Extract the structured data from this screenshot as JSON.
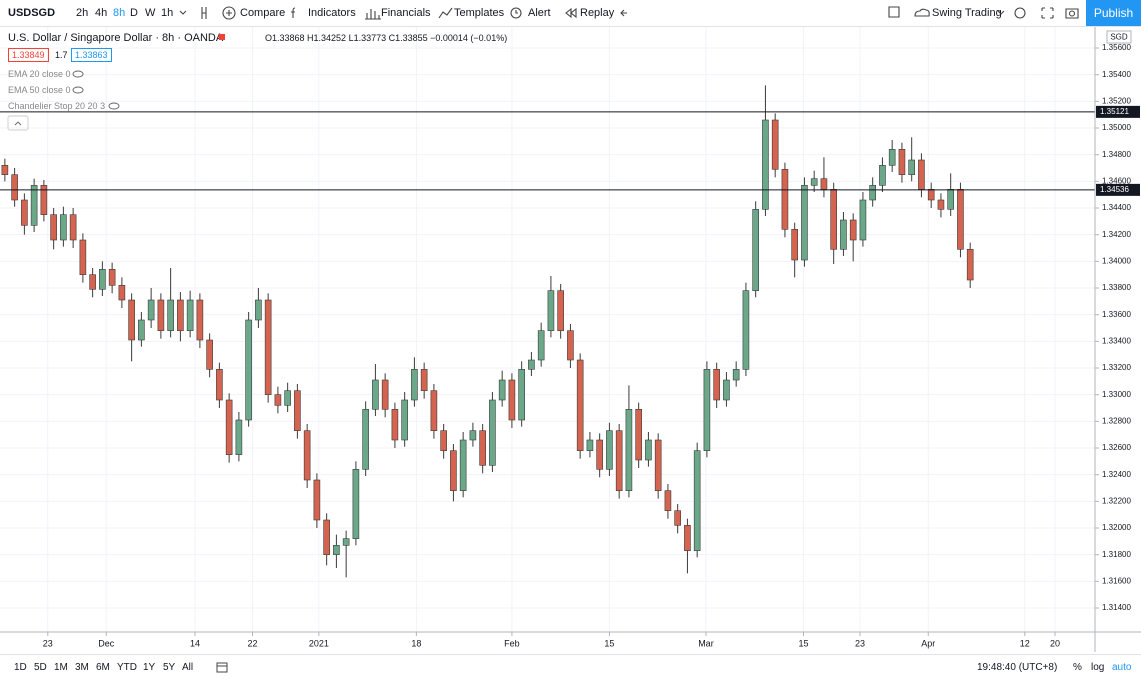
{
  "toolbar": {
    "symbol": "USDSGD",
    "intervals": [
      "2h",
      "4h",
      "8h",
      "D",
      "W",
      "1h"
    ],
    "buttons": [
      "Compare",
      "Indicators",
      "Financials",
      "Templates",
      "Alert",
      "Replay"
    ],
    "layout": "Swing Trading",
    "publish": "Publish"
  },
  "legend": {
    "title": "U.S. Dollar / Singapore Dollar · 8h · OANDA",
    "ohlc": "O1.33868 H1.34252 L1.33773 C1.33855 −0.00014 (−0.01%)",
    "bid": "1.33849",
    "spread": "1.7",
    "ask": "1.33863",
    "indicators": [
      "EMA 20 close 0",
      "EMA 50 close 0",
      "Chandelier Stop 20 20 3"
    ]
  },
  "chart_data": {
    "type": "candlestick",
    "currency": "SGD",
    "up_color": "#6aa889",
    "down_color": "#d4634f",
    "wick_color": "#3a3a3a",
    "grid": true,
    "open": [
      1.3472,
      1.3465,
      1.3446,
      1.3427,
      1.3457,
      1.3435,
      1.3416,
      1.3435,
      1.3416,
      1.339,
      1.3379,
      1.3394,
      1.3382,
      1.3371,
      1.3341,
      1.3356,
      1.3371,
      1.3348,
      1.3371,
      1.3348,
      1.3371,
      1.3341,
      1.3319,
      1.3296,
      1.3255,
      1.3281,
      1.3356,
      1.3371,
      1.33,
      1.3292,
      1.3303,
      1.3273,
      1.3236,
      1.3206,
      1.318,
      1.3187,
      1.3192,
      1.3244,
      1.3289,
      1.3311,
      1.3289,
      1.3266,
      1.3296,
      1.3319,
      1.3303,
      1.3273,
      1.3258,
      1.3228,
      1.3266,
      1.3273,
      1.3247,
      1.3296,
      1.3311,
      1.3281,
      1.3319,
      1.3326,
      1.3348,
      1.3378,
      1.3348,
      1.3326,
      1.3258,
      1.3266,
      1.3244,
      1.3273,
      1.3228,
      1.3289,
      1.3251,
      1.3266,
      1.3228,
      1.3213,
      1.3202,
      1.3183,
      1.3258,
      1.3319,
      1.3296,
      1.3311,
      1.3319,
      1.3378,
      1.3439,
      1.3506,
      1.3469,
      1.3424,
      1.3401,
      1.3457,
      1.3462,
      1.3454,
      1.3409,
      1.3431,
      1.3416,
      1.3446,
      1.3457,
      1.3472,
      1.3484,
      1.3465,
      1.3476,
      1.3454,
      1.3446,
      1.3439,
      1.3454,
      1.3409
    ],
    "high": [
      1.3477,
      1.347,
      1.3451,
      1.3462,
      1.3461,
      1.344,
      1.3441,
      1.344,
      1.3421,
      1.3395,
      1.34,
      1.3399,
      1.3388,
      1.3376,
      1.3362,
      1.338,
      1.3376,
      1.3395,
      1.3377,
      1.3378,
      1.3376,
      1.3346,
      1.3324,
      1.3301,
      1.3287,
      1.3362,
      1.338,
      1.3376,
      1.3306,
      1.3309,
      1.3308,
      1.3278,
      1.3241,
      1.3211,
      1.3195,
      1.3198,
      1.325,
      1.3295,
      1.3323,
      1.3316,
      1.3294,
      1.3302,
      1.3328,
      1.3324,
      1.3308,
      1.3278,
      1.3263,
      1.3272,
      1.3279,
      1.3278,
      1.3302,
      1.3318,
      1.3316,
      1.3325,
      1.3332,
      1.3354,
      1.3389,
      1.3383,
      1.3353,
      1.3331,
      1.3272,
      1.3271,
      1.3279,
      1.3278,
      1.3307,
      1.3294,
      1.3272,
      1.3271,
      1.3233,
      1.3218,
      1.3207,
      1.3264,
      1.3325,
      1.3324,
      1.3317,
      1.3325,
      1.3384,
      1.3445,
      1.3532,
      1.3511,
      1.3474,
      1.3429,
      1.3463,
      1.3468,
      1.3478,
      1.3459,
      1.3437,
      1.3436,
      1.3452,
      1.3463,
      1.3478,
      1.3491,
      1.3489,
      1.3493,
      1.3481,
      1.3459,
      1.3451,
      1.3466,
      1.3459,
      1.3414
    ],
    "low": [
      1.346,
      1.3441,
      1.342,
      1.3422,
      1.343,
      1.3409,
      1.3411,
      1.341,
      1.3384,
      1.3373,
      1.3374,
      1.3376,
      1.3365,
      1.3325,
      1.3336,
      1.335,
      1.3342,
      1.3343,
      1.334,
      1.3343,
      1.3335,
      1.3313,
      1.329,
      1.3249,
      1.325,
      1.3276,
      1.335,
      1.3294,
      1.3286,
      1.3287,
      1.3267,
      1.323,
      1.32,
      1.3172,
      1.317,
      1.3163,
      1.3187,
      1.3239,
      1.3284,
      1.3283,
      1.326,
      1.3261,
      1.3291,
      1.3297,
      1.3267,
      1.3252,
      1.322,
      1.3223,
      1.3261,
      1.3241,
      1.3242,
      1.3291,
      1.3275,
      1.3276,
      1.3314,
      1.3321,
      1.3343,
      1.3342,
      1.332,
      1.3252,
      1.3253,
      1.3238,
      1.3239,
      1.3222,
      1.3223,
      1.3245,
      1.3246,
      1.3222,
      1.3207,
      1.3196,
      1.3166,
      1.3178,
      1.3253,
      1.329,
      1.3291,
      1.3306,
      1.3314,
      1.3373,
      1.3434,
      1.3463,
      1.3418,
      1.3388,
      1.3396,
      1.3452,
      1.3448,
      1.3398,
      1.3404,
      1.34,
      1.3411,
      1.3441,
      1.3452,
      1.3467,
      1.3459,
      1.346,
      1.3448,
      1.344,
      1.3433,
      1.3434,
      1.3403,
      1.338
    ],
    "close": [
      1.3465,
      1.3446,
      1.3427,
      1.3457,
      1.3435,
      1.3416,
      1.3435,
      1.3416,
      1.339,
      1.3379,
      1.3394,
      1.3382,
      1.3371,
      1.3341,
      1.3356,
      1.3371,
      1.3348,
      1.3371,
      1.3348,
      1.3371,
      1.3341,
      1.3319,
      1.3296,
      1.3255,
      1.3281,
      1.3356,
      1.3371,
      1.33,
      1.3292,
      1.3303,
      1.3273,
      1.3236,
      1.3206,
      1.318,
      1.3187,
      1.3192,
      1.3244,
      1.3289,
      1.3311,
      1.3289,
      1.3266,
      1.3296,
      1.3319,
      1.3303,
      1.3273,
      1.3258,
      1.3228,
      1.3266,
      1.3273,
      1.3247,
      1.3296,
      1.3311,
      1.3281,
      1.3319,
      1.3326,
      1.3348,
      1.3378,
      1.3348,
      1.3326,
      1.3258,
      1.3266,
      1.3244,
      1.3273,
      1.3228,
      1.3289,
      1.3251,
      1.3266,
      1.3228,
      1.3213,
      1.3202,
      1.3183,
      1.3258,
      1.3319,
      1.3296,
      1.3311,
      1.3319,
      1.3378,
      1.3439,
      1.3506,
      1.3469,
      1.3424,
      1.3401,
      1.3457,
      1.3462,
      1.3454,
      1.3409,
      1.3431,
      1.3416,
      1.3446,
      1.3457,
      1.3472,
      1.3484,
      1.3465,
      1.3476,
      1.3454,
      1.3446,
      1.3439,
      1.3454,
      1.3409,
      1.3386
    ],
    "hlines": [
      {
        "value": 1.35121,
        "label": "1.35121"
      },
      {
        "value": 1.34536,
        "label": "1.34536"
      }
    ],
    "xlim": [
      -0.5,
      111.8
    ],
    "xticks": [
      {
        "value": 4.4,
        "label": "23"
      },
      {
        "value": 10.4,
        "label": "Dec"
      },
      {
        "value": 19.5,
        "label": "14"
      },
      {
        "value": 25.4,
        "label": "22"
      },
      {
        "value": 32.2,
        "label": "2021"
      },
      {
        "value": 42.2,
        "label": "18"
      },
      {
        "value": 52.0,
        "label": "Feb"
      },
      {
        "value": 62.0,
        "label": "15"
      },
      {
        "value": 71.9,
        "label": "Mar"
      },
      {
        "value": 81.9,
        "label": "15"
      },
      {
        "value": 87.7,
        "label": "23"
      },
      {
        "value": 94.7,
        "label": "Apr"
      },
      {
        "value": 104.6,
        "label": "12"
      },
      {
        "value": 107.7,
        "label": "20"
      }
    ],
    "ylim": [
      1.3122,
      1.3575
    ],
    "yticks": [
      {
        "value": 1.314,
        "label": "1.31400"
      },
      {
        "value": 1.316,
        "label": "1.31600"
      },
      {
        "value": 1.318,
        "label": "1.31800"
      },
      {
        "value": 1.32,
        "label": "1.32000"
      },
      {
        "value": 1.322,
        "label": "1.32200"
      },
      {
        "value": 1.324,
        "label": "1.32400"
      },
      {
        "value": 1.326,
        "label": "1.32600"
      },
      {
        "value": 1.328,
        "label": "1.32800"
      },
      {
        "value": 1.33,
        "label": "1.33000"
      },
      {
        "value": 1.332,
        "label": "1.33200"
      },
      {
        "value": 1.334,
        "label": "1.33400"
      },
      {
        "value": 1.336,
        "label": "1.33600"
      },
      {
        "value": 1.338,
        "label": "1.33800"
      },
      {
        "value": 1.34,
        "label": "1.34000"
      },
      {
        "value": 1.342,
        "label": "1.34200"
      },
      {
        "value": 1.344,
        "label": "1.34400"
      },
      {
        "value": 1.346,
        "label": "1.34600"
      },
      {
        "value": 1.348,
        "label": "1.34800"
      },
      {
        "value": 1.35,
        "label": "1.35000"
      },
      {
        "value": 1.352,
        "label": "1.35200"
      },
      {
        "value": 1.354,
        "label": "1.35400"
      },
      {
        "value": 1.356,
        "label": "1.35600"
      }
    ]
  },
  "bottom_bar": {
    "ranges": [
      "1D",
      "5D",
      "1M",
      "3M",
      "6M",
      "YTD",
      "1Y",
      "5Y",
      "All"
    ],
    "clock": "19:48:40 (UTC+8)",
    "options": [
      "%",
      "log",
      "auto"
    ]
  }
}
